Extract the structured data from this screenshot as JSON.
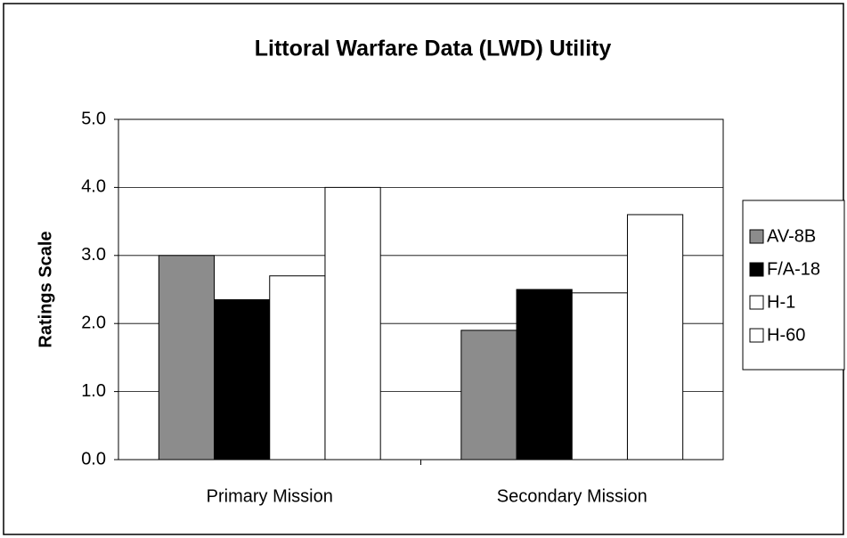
{
  "chart_data": {
    "type": "bar",
    "title": "Littoral Warfare Data (LWD) Utility",
    "y_label": "Ratings Scale",
    "categories": [
      "Primary Mission",
      "Secondary Mission"
    ],
    "series": [
      {
        "name": "AV-8B",
        "color": "#8c8c8c",
        "values": [
          3.0,
          1.9
        ]
      },
      {
        "name": "F/A-18",
        "color": "#000000",
        "values": [
          2.35,
          2.5
        ]
      },
      {
        "name": "H-1",
        "color": "#ffffff",
        "values": [
          2.7,
          2.45
        ]
      },
      {
        "name": "H-60",
        "color": "#ffffff",
        "values": [
          4.0,
          3.6
        ]
      }
    ],
    "ylim": [
      0,
      5
    ],
    "yticks": [
      {
        "value": 0,
        "label": "0.0"
      },
      {
        "value": 1,
        "label": "1.0"
      },
      {
        "value": 2,
        "label": "2.0"
      },
      {
        "value": 3,
        "label": "3.0"
      },
      {
        "value": 4,
        "label": "4.0"
      },
      {
        "value": 5,
        "label": "5.0"
      }
    ],
    "grid": true,
    "legend": "right"
  }
}
